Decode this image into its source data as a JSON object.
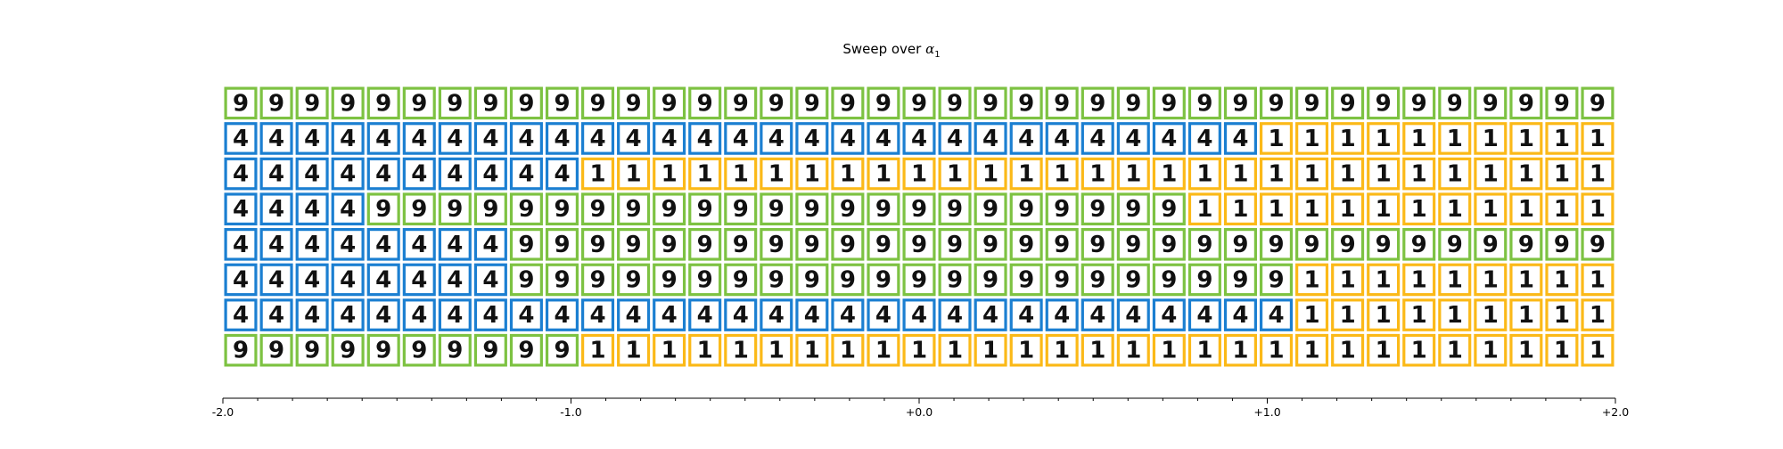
{
  "chart_data": {
    "type": "heatmap",
    "title": "Sweep over",
    "title_symbol": "α",
    "title_subscript": "1",
    "x_range": [
      -2.0,
      2.0
    ],
    "n_columns": 39,
    "x_tick_labels": [
      "-2.0",
      "-1.0",
      "+0.0",
      "+1.0",
      "+2.0"
    ],
    "x_tick_values": [
      -2.0,
      -1.0,
      0.0,
      1.0,
      2.0
    ],
    "minor_tick_step": 0.1,
    "grid": false,
    "legend": "none",
    "class_colors": {
      "9": "#7dc242",
      "4": "#1b7fd1",
      "1": "#fbb918"
    },
    "rows": [
      {
        "cells": "999999999999999999999999999999999999999",
        "glyphs": "999999999999999999999999999999999999999"
      },
      {
        "cells": "444444444444444444444444444441111111111",
        "glyphs": "444444444444444444444444444441111111111"
      },
      {
        "cells": "444444444411111111111111111111111111111",
        "glyphs": "444444444411111111111111111111111111111"
      },
      {
        "cells": "444499999999999999999999999111111111111",
        "glyphs": "444499999999999999999999999111111111111"
      },
      {
        "cells": "444444449999999999999999999999999999999",
        "glyphs": "444444449999999999999999999999999999999"
      },
      {
        "cells": "444444449999999999999999999999111111111",
        "glyphs": "444444449999999999999999999999111111111"
      },
      {
        "cells": "444444444444444444444444444444111111111",
        "glyphs": "444444444444444444444444444444111111111"
      },
      {
        "cells": "999999999911111111111111111111111111111",
        "glyphs": "999999999911111111111111111111111111111"
      }
    ]
  }
}
